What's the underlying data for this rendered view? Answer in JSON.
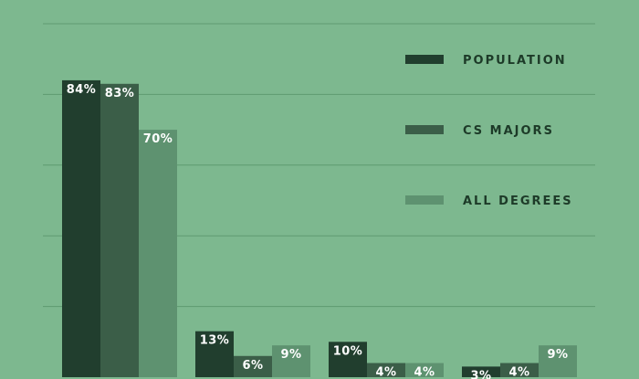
{
  "chart_data": {
    "type": "bar",
    "title": "",
    "xlabel": "",
    "ylabel": "",
    "categories": [
      "",
      "",
      "",
      ""
    ],
    "ylim": [
      0,
      100
    ],
    "grid": true,
    "legend_position": "top-right",
    "series": [
      {
        "name": "POPULATION",
        "color": "#213e2e",
        "values": [
          84,
          13,
          10,
          3
        ],
        "labels": [
          "84%",
          "13%",
          "10%",
          "3%"
        ]
      },
      {
        "name": "CS MAJORS",
        "color": "#3b5e48",
        "values": [
          83,
          6,
          4,
          4
        ],
        "labels": [
          "83%",
          "6%",
          "4%",
          "4%"
        ]
      },
      {
        "name": "ALL DEGREES",
        "color": "#5e9270",
        "values": [
          70,
          9,
          4,
          9
        ],
        "labels": [
          "70%",
          "9%",
          "4%",
          "9%"
        ]
      }
    ]
  }
}
